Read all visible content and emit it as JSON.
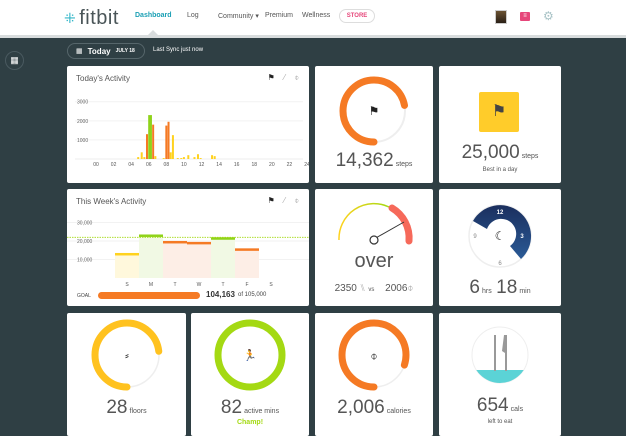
{
  "header": {
    "logo": "fitbit",
    "nav": [
      {
        "label": "Dashboard",
        "active": true
      },
      {
        "label": "Log"
      },
      {
        "label": "Community ▾"
      },
      {
        "label": "Premium"
      },
      {
        "label": "Wellness"
      }
    ],
    "store": "STORE",
    "icons": [
      "avatar",
      "messages-icon",
      "gear-icon"
    ]
  },
  "toolbar": {
    "today": "Today",
    "date": "JULY 18",
    "sync": "Last Sync just now"
  },
  "colors": {
    "background": "#2f3f44",
    "accent": "#1a9fb4",
    "orange": "#f57a24",
    "green": "#a4d913",
    "yellow": "#ffcc2a",
    "teal": "#5bd3d6",
    "store": "#e6467a"
  },
  "today_activity": {
    "title": "Today's Activity",
    "chart_data": {
      "type": "bar",
      "title": "Today's Activity",
      "x_ticks": [
        "00",
        "02",
        "04",
        "06",
        "08",
        "10",
        "12",
        "14",
        "16",
        "18",
        "20",
        "22",
        "24"
      ],
      "y_ticks": [
        "1000",
        "2000",
        "3000"
      ],
      "ylim": [
        0,
        3300
      ],
      "xlim": [
        0,
        24
      ],
      "grid": true,
      "bars": [
        [
          4.8,
          100,
          "yellow"
        ],
        [
          5.2,
          350,
          "yellow"
        ],
        [
          5.5,
          100,
          "yellow"
        ],
        [
          5.8,
          1300,
          "orange"
        ],
        [
          6.05,
          2300,
          "green"
        ],
        [
          6.25,
          2300,
          "green"
        ],
        [
          6.5,
          1800,
          "orange"
        ],
        [
          6.75,
          150,
          "yellow"
        ],
        [
          7.7,
          50,
          "yellow"
        ],
        [
          8.0,
          1750,
          "orange"
        ],
        [
          8.25,
          1950,
          "orange"
        ],
        [
          8.5,
          350,
          "yellow"
        ],
        [
          8.75,
          1250,
          "yellow"
        ],
        [
          9.3,
          50,
          "yellow"
        ],
        [
          9.7,
          50,
          "yellow"
        ],
        [
          10.0,
          100,
          "yellow"
        ],
        [
          10.5,
          200,
          "yellow"
        ],
        [
          11.2,
          100,
          "yellow"
        ],
        [
          11.6,
          250,
          "yellow"
        ],
        [
          11.9,
          50,
          "yellow"
        ],
        [
          13.2,
          200,
          "yellow"
        ],
        [
          13.5,
          150,
          "yellow"
        ]
      ]
    }
  },
  "week_activity": {
    "title": "This Week's Activity",
    "chart_data": {
      "type": "bar",
      "title": "This Week's Activity",
      "categories": [
        "S",
        "M",
        "T",
        "W",
        "T",
        "F",
        "S"
      ],
      "values": [
        13000,
        23000,
        19500,
        19000,
        21500,
        15500,
        0
      ],
      "colors": [
        "yellow",
        "green",
        "orange",
        "orange",
        "green",
        "orange",
        "none"
      ],
      "y_ticks": [
        "10,000",
        "20,000",
        "30,000"
      ],
      "ylim": [
        0,
        33000
      ],
      "goal_line": 22000,
      "grid": true
    },
    "goal_label": "GOAL",
    "goal_value": "104,163",
    "goal_of": "of 105,000",
    "goal_progress": 0.99
  },
  "steps": {
    "value": "14,362",
    "unit": "steps",
    "progress": 0.72
  },
  "best": {
    "value": "25,000",
    "unit": "steps",
    "sub": "Best in a day"
  },
  "calories_balance": {
    "status": "over",
    "eaten": "2350",
    "vs": "vs",
    "burned": "2006"
  },
  "sleep": {
    "hours": "6",
    "hours_unit": "hrs",
    "minutes": "18",
    "minutes_unit": "min",
    "clock": [
      "12",
      "3",
      "6",
      "9"
    ]
  },
  "floors": {
    "value": "28",
    "unit": "floors",
    "progress": 0.73
  },
  "active": {
    "value": "82",
    "unit": "active mins",
    "note": "Champ!",
    "progress": 1.0
  },
  "calories": {
    "value": "2,006",
    "unit": "calories",
    "progress": 0.8
  },
  "food": {
    "value": "654",
    "unit": "cals",
    "sub": "left to eat"
  }
}
